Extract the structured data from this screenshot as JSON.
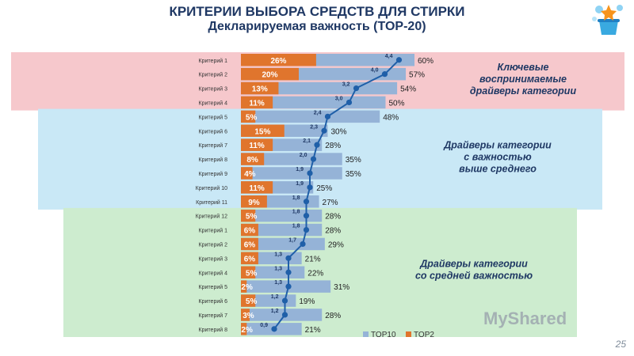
{
  "header": {
    "title": "КРИТЕРИИ ВЫБОРА СРЕДСТВ ДЛЯ СТИРКИ",
    "subtitle": "Декларируемая важность (TOP-20)"
  },
  "page_number": "25",
  "watermark": "MyShared",
  "colors": {
    "top10": "#95b3d7",
    "top2": "#e0752d",
    "line": "#1f5fa8",
    "zone_key": "#f6c8cc",
    "zone_above": "#c9e8f6",
    "zone_avg": "#cdeccf",
    "zone_text": "#1f3864"
  },
  "chart_data": {
    "type": "bar",
    "categories": [
      "Критерий 1",
      "Критерий 2",
      "Критерий 3",
      "Критерий 4",
      "Критерий 5",
      "Критерий 6",
      "Критерий 7",
      "Критерий 8",
      "Критерий 9",
      "Критерий 10",
      "Критерий 11",
      "Критерий 12",
      "Критерий 1",
      "Критерий 2",
      "Критерий 3",
      "Критерий 4",
      "Критерий 5",
      "Критерий 6",
      "Критерий 7",
      "Критерий 8"
    ],
    "series": [
      {
        "name": "TOP10",
        "values": [
          60,
          57,
          54,
          50,
          48,
          30,
          28,
          35,
          35,
          25,
          27,
          28,
          28,
          29,
          21,
          22,
          31,
          19,
          28,
          21
        ],
        "labels": [
          "60%",
          "57%",
          "54%",
          "50%",
          "48%",
          "30%",
          "28%",
          "35%",
          "35%",
          "25%",
          "27%",
          "28%",
          "28%",
          "29%",
          "21%",
          "22%",
          "31%",
          "19%",
          "28%",
          "21%"
        ]
      },
      {
        "name": "TOP2",
        "values": [
          26,
          20,
          13,
          11,
          5,
          15,
          11,
          8,
          4,
          11,
          9,
          5,
          6,
          6,
          6,
          5,
          2,
          5,
          3,
          2
        ],
        "labels": [
          "26%",
          "20%",
          "13%",
          "11%",
          "5%",
          "15%",
          "11%",
          "8%",
          "4%",
          "11%",
          "9%",
          "5%",
          "6%",
          "6%",
          "6%",
          "5%",
          "2%",
          "5%",
          "3%",
          "2%"
        ]
      }
    ],
    "importance": {
      "values": [
        4.4,
        4.0,
        3.2,
        3.0,
        2.4,
        2.3,
        2.1,
        2.0,
        1.9,
        1.9,
        1.8,
        1.8,
        1.8,
        1.7,
        1.3,
        1.3,
        1.3,
        1.2,
        1.2,
        0.9
      ],
      "labels": [
        "4,4",
        "4,0",
        "3,2",
        "3,0",
        "2,4",
        "2,3",
        "2,1",
        "2,0",
        "1,9",
        "1,9",
        "1,8",
        "1,8",
        "1,8",
        "1,7",
        "1,3",
        "1,3",
        "1,3",
        "1,2",
        "1,2",
        "0,9"
      ]
    },
    "zones": [
      {
        "label_lines": [
          "Ключевые",
          "воспринимаемые",
          "драйверы категории"
        ],
        "rows": [
          0,
          3
        ]
      },
      {
        "label_lines": [
          "Драйверы категории",
          "с важностью",
          "выше среднего"
        ],
        "rows": [
          4,
          10
        ]
      },
      {
        "label_lines": [
          "Драйверы категории",
          "со средней важностью"
        ],
        "rows": [
          11,
          19
        ]
      }
    ],
    "xlim": [
      0,
      100
    ],
    "grid": false,
    "legend_position": "bottom"
  }
}
